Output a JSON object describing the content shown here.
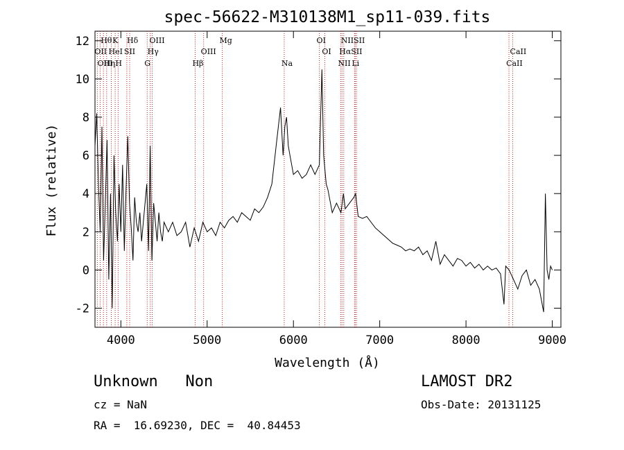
{
  "chart_data": {
    "type": "line",
    "title": "spec-56622-M310138M1_sp11-039.fits",
    "xlabel": "Wavelength (Å)",
    "ylabel": "Flux (relative)",
    "xlim": [
      3700,
      9100
    ],
    "ylim": [
      -3,
      12.5
    ],
    "xticks": [
      4000,
      5000,
      6000,
      7000,
      8000,
      9000
    ],
    "yticks": [
      -2,
      0,
      2,
      4,
      6,
      8,
      10,
      12
    ],
    "grid": false,
    "line_color": "#000000",
    "marker_color": "#b22222",
    "series": [
      {
        "x": [
          3700,
          3720,
          3740,
          3760,
          3780,
          3800,
          3820,
          3840,
          3860,
          3880,
          3900,
          3920,
          3940,
          3960,
          3980,
          4000,
          4020,
          4040,
          4060,
          4080,
          4100,
          4120,
          4140,
          4160,
          4180,
          4200,
          4220,
          4240,
          4260,
          4280,
          4300,
          4320,
          4340,
          4360,
          4380,
          4400,
          4420,
          4440,
          4460,
          4480,
          4500,
          4550,
          4600,
          4650,
          4700,
          4750,
          4800,
          4850,
          4900,
          4950,
          5000,
          5050,
          5100,
          5150,
          5200,
          5250,
          5300,
          5350,
          5400,
          5450,
          5500,
          5550,
          5600,
          5650,
          5700,
          5750,
          5800,
          5850,
          5880,
          5900,
          5920,
          5940,
          5960,
          5980,
          6000,
          6050,
          6100,
          6150,
          6200,
          6250,
          6300,
          6330,
          6350,
          6380,
          6400,
          6450,
          6500,
          6550,
          6580,
          6600,
          6650,
          6700,
          6720,
          6750,
          6800,
          6850,
          6900,
          6950,
          7000,
          7050,
          7100,
          7150,
          7200,
          7250,
          7300,
          7350,
          7400,
          7450,
          7500,
          7550,
          7600,
          7650,
          7700,
          7750,
          7800,
          7850,
          7900,
          7950,
          8000,
          8050,
          8100,
          8150,
          8200,
          8250,
          8300,
          8350,
          8400,
          8440,
          8460,
          8500,
          8550,
          8600,
          8650,
          8700,
          8750,
          8800,
          8850,
          8900,
          8920,
          8940,
          8960,
          8980,
          9000
        ],
        "y": [
          6.5,
          8.2,
          4.5,
          2.0,
          7.5,
          0.5,
          3.5,
          6.8,
          -0.5,
          4.0,
          -2.0,
          6.0,
          3.0,
          1.5,
          4.5,
          2.0,
          5.5,
          1.0,
          4.2,
          7.0,
          3.5,
          2.2,
          0.5,
          3.8,
          2.5,
          2.0,
          3.0,
          1.5,
          2.5,
          3.5,
          4.5,
          1.0,
          6.5,
          0.5,
          3.5,
          2.5,
          1.5,
          3.0,
          2.0,
          1.5,
          2.5,
          2.0,
          2.5,
          1.8,
          2.0,
          2.5,
          1.2,
          2.2,
          1.5,
          2.5,
          2.0,
          2.2,
          1.8,
          2.5,
          2.2,
          2.6,
          2.8,
          2.5,
          3.0,
          2.8,
          2.6,
          3.2,
          3.0,
          3.3,
          3.8,
          4.5,
          6.5,
          8.5,
          6.0,
          7.5,
          8.0,
          6.5,
          6.0,
          5.5,
          5.0,
          5.2,
          4.8,
          5.0,
          5.5,
          5.0,
          5.5,
          10.5,
          6.0,
          4.5,
          4.2,
          3.0,
          3.5,
          3.0,
          4.0,
          3.2,
          3.5,
          3.8,
          4.0,
          2.8,
          2.7,
          2.8,
          2.5,
          2.2,
          2.0,
          1.8,
          1.6,
          1.4,
          1.3,
          1.2,
          1.0,
          1.1,
          1.0,
          1.2,
          0.8,
          1.0,
          0.5,
          1.5,
          0.3,
          0.8,
          0.5,
          0.2,
          0.6,
          0.5,
          0.2,
          0.4,
          0.1,
          0.3,
          0.0,
          0.2,
          0.0,
          0.1,
          -0.2,
          -1.8,
          0.2,
          0.0,
          -0.5,
          -1.0,
          -0.3,
          0.0,
          -0.8,
          -0.5,
          -1.0,
          -2.2,
          4.0,
          0.0,
          -0.5,
          0.2,
          0.0
        ]
      }
    ],
    "lines_top": [
      {
        "label": "Hθ",
        "x": 3798
      },
      {
        "label": "K",
        "x": 3934
      },
      {
        "label": "Hδ",
        "x": 4102
      },
      {
        "label": "OIII",
        "x": 4363
      },
      {
        "label": "Mg",
        "x": 5175
      },
      {
        "label": "OI",
        "x": 6300
      },
      {
        "label": "NIISII",
        "x": 6583
      }
    ],
    "lines_mid": [
      {
        "label": "OII",
        "x": 3727
      },
      {
        "label": "HeI",
        "x": 3889
      },
      {
        "label": "SII",
        "x": 4069
      },
      {
        "label": "Hγ",
        "x": 4340
      },
      {
        "label": "OIII",
        "x": 4959
      },
      {
        "label": "OI",
        "x": 6363
      },
      {
        "label": "HαSII",
        "x": 6563
      },
      {
        "label": "CaII",
        "x": 8542
      }
    ],
    "lines_bot": [
      {
        "label": "OIII",
        "x": 3760
      },
      {
        "label": "Hη",
        "x": 3835
      },
      {
        "label": "H",
        "x": 3968
      },
      {
        "label": "G",
        "x": 4305
      },
      {
        "label": "Hβ",
        "x": 4861
      },
      {
        "label": "Na",
        "x": 5893
      },
      {
        "label": "NII",
        "x": 6548
      },
      {
        "label": "Li",
        "x": 6708
      },
      {
        "label": "CaII",
        "x": 8498
      }
    ],
    "marker_positions": [
      3727,
      3760,
      3798,
      3835,
      3889,
      3934,
      3968,
      4069,
      4102,
      4305,
      4340,
      4363,
      4861,
      4959,
      5175,
      5893,
      6300,
      6363,
      6548,
      6563,
      6583,
      6708,
      6716,
      6731,
      8498,
      8542
    ]
  },
  "info": {
    "class_text": "Unknown   Non",
    "survey_text": "LAMOST DR2",
    "cz_text": "cz = NaN",
    "obs_date_text": "Obs-Date: 20131125",
    "radec_text": "RA =  16.69230, DEC =  40.84453"
  }
}
